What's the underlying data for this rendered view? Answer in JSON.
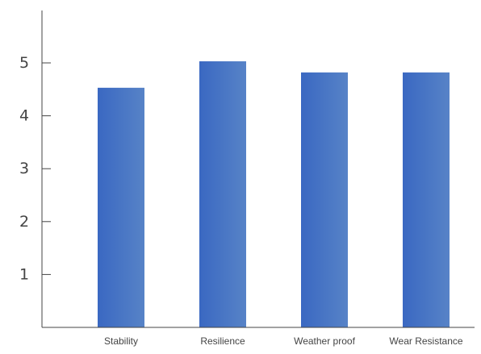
{
  "chart_data": {
    "type": "bar",
    "categories": [
      "Stability",
      "Resilience",
      "Weather proof",
      "Wear Resistance"
    ],
    "values": [
      4.53,
      5.03,
      4.82,
      4.82
    ],
    "ylim": [
      0,
      6
    ],
    "yticks": [
      1,
      2,
      3,
      4,
      5
    ],
    "grid": false,
    "legend": "none",
    "bar_color_start": "#3a68c2",
    "bar_color_end": "#5783c7",
    "axis_color": "#444444"
  }
}
